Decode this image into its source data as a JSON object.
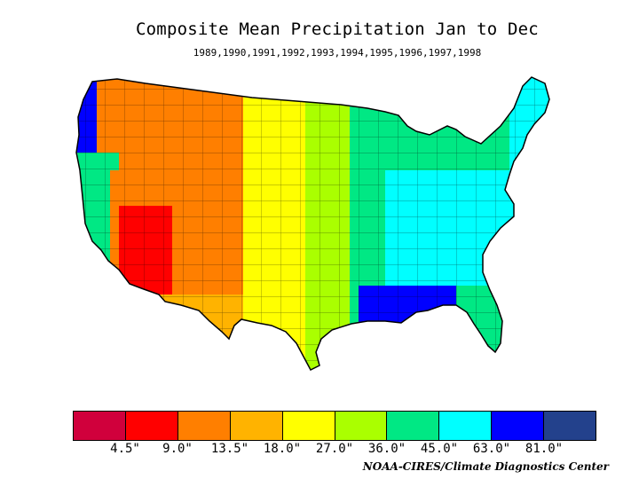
{
  "title": "Composite Mean Precipitation Jan to Dec",
  "years": "1989,1990,1991,1992,1993,1994,1995,1996,1997,1998",
  "credit": "NOAA-CIRES/Climate Diagnostics Center",
  "legend": {
    "colors": [
      "#d0003c",
      "#ff0000",
      "#ff7f00",
      "#ffb300",
      "#ffff00",
      "#aaff00",
      "#00e884",
      "#00ffff",
      "#0000ff",
      "#23418c"
    ],
    "labels": [
      "4.5\"",
      "9.0\"",
      "13.5\"",
      "18.0\"",
      "27.0\"",
      "36.0\"",
      "45.0\"",
      "63.0\"",
      "81.0\""
    ]
  }
}
